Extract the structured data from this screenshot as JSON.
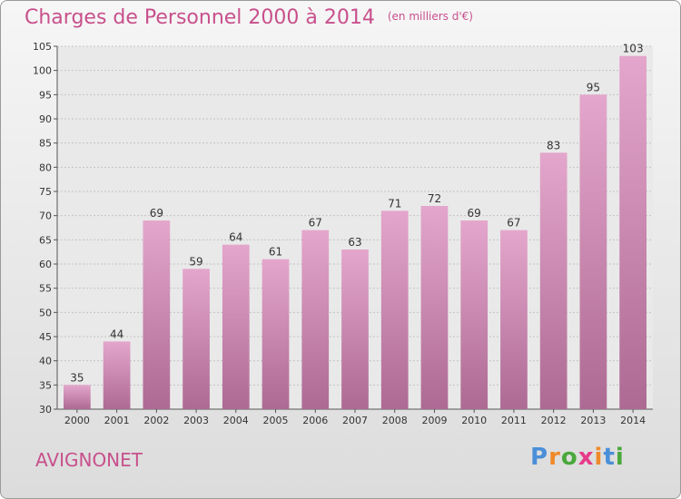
{
  "title": "Charges de Personnel 2000 à 2014",
  "unit_note": "(en milliers d'€)",
  "commune": "AVIGNONET",
  "logo": {
    "letters": [
      "P",
      "r",
      "o",
      "x",
      "i",
      "t",
      "i"
    ],
    "colors": [
      "#4a8fd8",
      "#ef8a2a",
      "#4aa83c",
      "#e63a8a",
      "#ef8a2a",
      "#4a8fd8",
      "#4aa83c"
    ]
  },
  "colors": {
    "bar": "#d68fb8",
    "accent": "#c8508c"
  },
  "chart_data": {
    "type": "bar",
    "categories": [
      "2000",
      "2001",
      "2002",
      "2003",
      "2004",
      "2005",
      "2006",
      "2007",
      "2008",
      "2009",
      "2010",
      "2011",
      "2012",
      "2013",
      "2014"
    ],
    "values": [
      35,
      44,
      69,
      59,
      64,
      61,
      67,
      63,
      71,
      72,
      69,
      67,
      83,
      95,
      103
    ],
    "title": "Charges de Personnel 2000 à 2014",
    "xlabel": "",
    "ylabel": "",
    "ylim": [
      30,
      105
    ],
    "yticks": [
      30,
      35,
      40,
      45,
      50,
      55,
      60,
      65,
      70,
      75,
      80,
      85,
      90,
      95,
      100,
      105
    ],
    "grid": true
  }
}
